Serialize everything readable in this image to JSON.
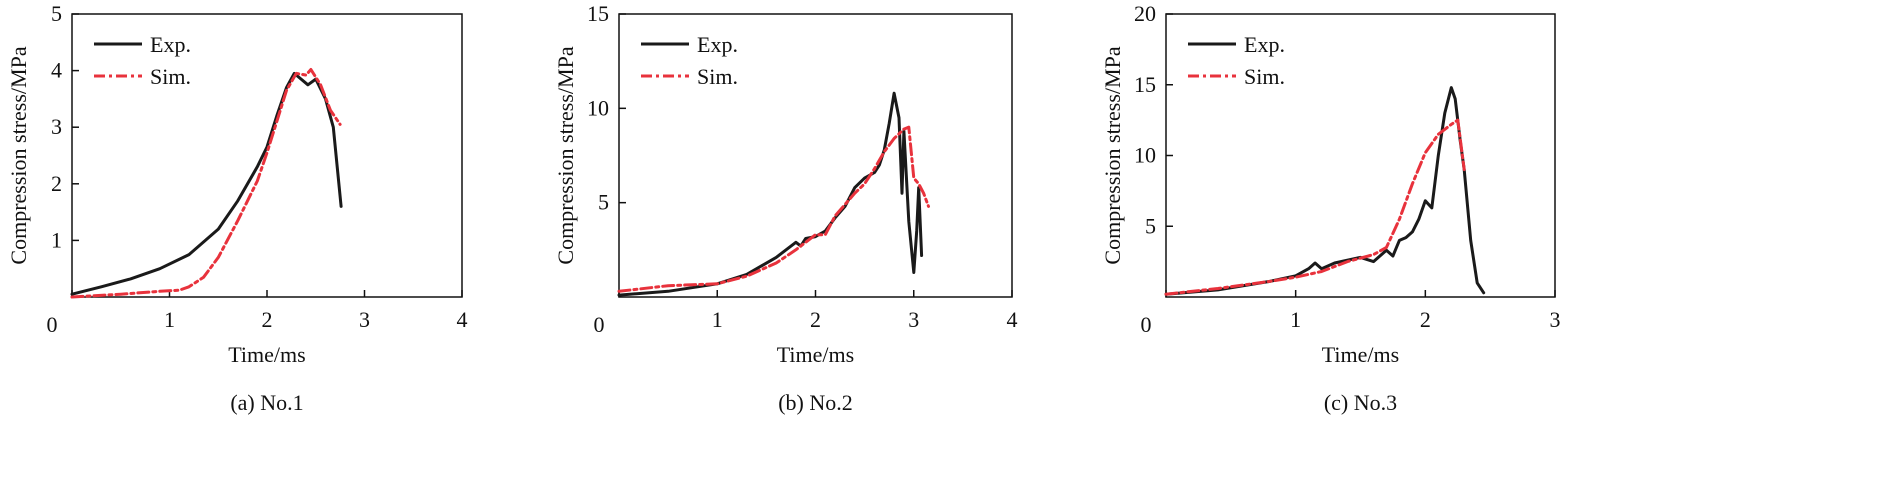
{
  "chart_data": [
    {
      "type": "line",
      "caption": "(a) No.1",
      "xlabel": "Time/ms",
      "ylabel": "Compression stress/MPa",
      "xlim": [
        0,
        4
      ],
      "ylim": [
        0,
        5
      ],
      "xticks": [
        "0",
        "1",
        "2",
        "3",
        "4"
      ],
      "yticks": [
        "1",
        "2",
        "3",
        "4",
        "5"
      ],
      "legend_position": "top-left",
      "grid": false,
      "series": [
        {
          "name": "Exp.",
          "color": "#1a1a1a",
          "dash": "solid",
          "x": [
            0,
            0.3,
            0.6,
            0.9,
            1.2,
            1.5,
            1.7,
            1.9,
            2.0,
            2.1,
            2.2,
            2.28,
            2.35,
            2.42,
            2.5,
            2.6,
            2.68,
            2.72,
            2.76
          ],
          "y": [
            0.05,
            0.18,
            0.32,
            0.5,
            0.75,
            1.2,
            1.7,
            2.3,
            2.65,
            3.2,
            3.7,
            3.95,
            3.85,
            3.75,
            3.85,
            3.5,
            3.0,
            2.3,
            1.6
          ]
        },
        {
          "name": "Sim.",
          "color": "#e8323c",
          "dash": "dash-dot",
          "x": [
            0,
            0.5,
            0.9,
            1.1,
            1.2,
            1.35,
            1.5,
            1.7,
            1.9,
            2.0,
            2.1,
            2.2,
            2.3,
            2.4,
            2.45,
            2.55,
            2.65,
            2.75
          ],
          "y": [
            0.0,
            0.05,
            0.1,
            0.12,
            0.18,
            0.35,
            0.7,
            1.35,
            2.05,
            2.55,
            3.1,
            3.65,
            3.95,
            3.92,
            4.02,
            3.75,
            3.3,
            3.05
          ]
        }
      ]
    },
    {
      "type": "line",
      "caption": "(b) No.2",
      "xlabel": "Time/ms",
      "ylabel": "Compression stress/MPa",
      "xlim": [
        0,
        4
      ],
      "ylim": [
        0,
        15
      ],
      "xticks": [
        "0",
        "1",
        "2",
        "3",
        "4"
      ],
      "yticks": [
        "5",
        "10",
        "15"
      ],
      "legend_position": "top-left",
      "grid": false,
      "series": [
        {
          "name": "Exp.",
          "color": "#1a1a1a",
          "dash": "solid",
          "x": [
            0,
            0.5,
            1.0,
            1.3,
            1.6,
            1.8,
            1.85,
            1.9,
            2.0,
            2.1,
            2.2,
            2.3,
            2.4,
            2.5,
            2.6,
            2.65,
            2.7,
            2.75,
            2.8,
            2.85,
            2.88,
            2.9,
            2.95,
            3.0,
            3.03,
            3.05,
            3.08
          ],
          "y": [
            0.1,
            0.3,
            0.7,
            1.2,
            2.1,
            2.9,
            2.7,
            3.1,
            3.2,
            3.5,
            4.2,
            4.8,
            5.8,
            6.3,
            6.6,
            7.0,
            7.8,
            9.2,
            10.8,
            9.5,
            5.5,
            8.8,
            4.0,
            1.3,
            3.5,
            5.8,
            2.2
          ]
        },
        {
          "name": "Sim.",
          "color": "#e8323c",
          "dash": "dash-dot",
          "x": [
            0,
            0.5,
            1.0,
            1.3,
            1.6,
            1.8,
            2.0,
            2.1,
            2.2,
            2.4,
            2.5,
            2.6,
            2.7,
            2.8,
            2.9,
            2.95,
            3.0,
            3.05,
            3.1,
            3.15
          ],
          "y": [
            0.3,
            0.6,
            0.7,
            1.1,
            1.8,
            2.5,
            3.3,
            3.3,
            4.3,
            5.5,
            6.0,
            6.8,
            7.7,
            8.4,
            8.9,
            9.0,
            6.3,
            6.0,
            5.5,
            4.8
          ]
        }
      ]
    },
    {
      "type": "line",
      "caption": "(c) No.3",
      "xlabel": "Time/ms",
      "ylabel": "Compression stress/MPa",
      "xlim": [
        0,
        3
      ],
      "ylim": [
        0,
        20
      ],
      "xticks": [
        "0",
        "1",
        "2",
        "3"
      ],
      "yticks": [
        "5",
        "10",
        "15",
        "20"
      ],
      "legend_position": "top-left",
      "grid": false,
      "series": [
        {
          "name": "Exp.",
          "color": "#1a1a1a",
          "dash": "solid",
          "x": [
            0,
            0.4,
            0.8,
            1.0,
            1.1,
            1.15,
            1.2,
            1.3,
            1.5,
            1.6,
            1.7,
            1.75,
            1.8,
            1.85,
            1.9,
            1.95,
            2.0,
            2.05,
            2.1,
            2.15,
            2.2,
            2.23,
            2.27,
            2.3,
            2.35,
            2.4,
            2.45
          ],
          "y": [
            0.2,
            0.5,
            1.1,
            1.5,
            2.0,
            2.4,
            2.0,
            2.4,
            2.8,
            2.5,
            3.3,
            2.9,
            4.0,
            4.2,
            4.6,
            5.5,
            6.8,
            6.3,
            10.0,
            13.0,
            14.8,
            14.0,
            11.0,
            9.0,
            4.0,
            1.0,
            0.3
          ]
        },
        {
          "name": "Sim.",
          "color": "#e8323c",
          "dash": "dash-dot",
          "x": [
            0,
            0.4,
            0.8,
            1.0,
            1.2,
            1.4,
            1.6,
            1.7,
            1.8,
            1.9,
            2.0,
            2.1,
            2.2,
            2.25,
            2.3
          ],
          "y": [
            0.2,
            0.6,
            1.1,
            1.4,
            1.8,
            2.5,
            3.0,
            3.5,
            5.5,
            8.0,
            10.2,
            11.5,
            12.2,
            12.5,
            9.0
          ]
        }
      ]
    }
  ]
}
